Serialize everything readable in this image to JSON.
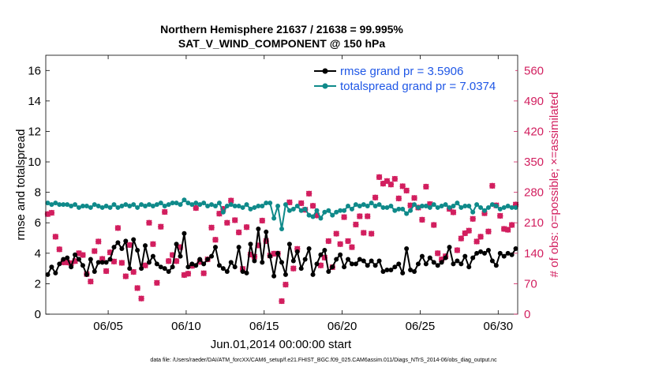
{
  "colors": {
    "rmse": "#000000",
    "spread": "#0f8a8a",
    "obs": "#d21f5f",
    "legend_text": "#1f57e6"
  },
  "footnote": "data file: /Users/raeder/DAI/ATM_forcXX/CAM6_setup/f.e21.FHIST_BGC.f09_025.CAM6assim.011/Diags_NTrS_2014-06/obs_diag_output.nc",
  "chart_data": {
    "type": "line",
    "title": "Northern Hemisphere 21637 / 21638 = 99.995%",
    "subtitle": "SAT_V_WIND_COMPONENT @ 150 hPa",
    "xlabel": "Jun.01,2014 00:00:00 start",
    "ylabel": "rmse and totalspread",
    "y2label": "# of obs: o=possible; ×=assimilated",
    "xlim": [
      1.0,
      31.25
    ],
    "ylim": [
      0,
      17
    ],
    "y2lim": [
      0,
      595
    ],
    "x_ticks": [
      5,
      10,
      15,
      20,
      25,
      30
    ],
    "x_tick_labels": [
      "06/05",
      "06/10",
      "06/15",
      "06/20",
      "06/25",
      "06/30"
    ],
    "y_ticks": [
      0,
      2,
      4,
      6,
      8,
      10,
      12,
      14,
      16
    ],
    "y2_ticks": [
      0,
      70,
      140,
      210,
      280,
      350,
      420,
      490,
      560
    ],
    "legend_position": "top-right",
    "grid": false,
    "x": [
      1.125,
      1.375,
      1.625,
      1.875,
      2.125,
      2.375,
      2.625,
      2.875,
      3.125,
      3.375,
      3.625,
      3.875,
      4.125,
      4.375,
      4.625,
      4.875,
      5.125,
      5.375,
      5.625,
      5.875,
      6.125,
      6.375,
      6.625,
      6.875,
      7.125,
      7.375,
      7.625,
      7.875,
      8.125,
      8.375,
      8.625,
      8.875,
      9.125,
      9.375,
      9.625,
      9.875,
      10.125,
      10.375,
      10.625,
      10.875,
      11.125,
      11.375,
      11.625,
      11.875,
      12.125,
      12.375,
      12.625,
      12.875,
      13.125,
      13.375,
      13.625,
      13.875,
      14.125,
      14.375,
      14.625,
      14.875,
      15.125,
      15.375,
      15.625,
      15.875,
      16.125,
      16.375,
      16.625,
      16.875,
      17.125,
      17.375,
      17.625,
      17.875,
      18.125,
      18.375,
      18.625,
      18.875,
      19.125,
      19.375,
      19.625,
      19.875,
      20.125,
      20.375,
      20.625,
      20.875,
      21.125,
      21.375,
      21.625,
      21.875,
      22.125,
      22.375,
      22.625,
      22.875,
      23.125,
      23.375,
      23.625,
      23.875,
      24.125,
      24.375,
      24.625,
      24.875,
      25.125,
      25.375,
      25.625,
      25.875,
      26.125,
      26.375,
      26.625,
      26.875,
      27.125,
      27.375,
      27.625,
      27.875,
      28.125,
      28.375,
      28.625,
      28.875,
      29.125,
      29.375,
      29.625,
      29.875,
      30.125,
      30.375,
      30.625,
      30.875,
      31.125
    ],
    "series": [
      {
        "name": "rmse grand pr = 3.5906",
        "axis": "left",
        "values": [
          2.6,
          3.1,
          2.7,
          3.3,
          3.6,
          3.7,
          3.1,
          3.9,
          3.6,
          3.2,
          2.6,
          3.6,
          2.8,
          3.4,
          3.4,
          3.4,
          3.6,
          4.4,
          4.7,
          4.3,
          4.8,
          3.0,
          4.9,
          4.2,
          3.0,
          4.5,
          3.4,
          3.8,
          3.3,
          3.1,
          3.0,
          2.8,
          3.1,
          4.6,
          3.8,
          5.3,
          3.1,
          3.3,
          3.2,
          3.6,
          3.3,
          3.6,
          3.8,
          4.4,
          3.2,
          3.0,
          2.8,
          3.4,
          3.1,
          4.4,
          2.8,
          2.7,
          4.6,
          3.5,
          5.6,
          3.4,
          5.4,
          3.8,
          2.5,
          4.0,
          3.4,
          2.6,
          4.6,
          3.5,
          4.1,
          3.0,
          3.6,
          4.3,
          2.6,
          3.3,
          3.9,
          4.2,
          2.8,
          3.1,
          3.6,
          3.9,
          3.1,
          3.6,
          3.3,
          3.3,
          3.6,
          3.5,
          3.2,
          3.5,
          3.2,
          3.5,
          2.8,
          2.9,
          2.9,
          3.1,
          3.3,
          2.7,
          4.3,
          2.9,
          2.8,
          3.3,
          3.8,
          3.3,
          3.7,
          3.4,
          3.2,
          3.4,
          3.7,
          4.4,
          3.3,
          3.5,
          3.3,
          3.8,
          3.1,
          3.7,
          4.0,
          4.1,
          4.0,
          4.2,
          3.5,
          3.2,
          4.0,
          3.8,
          4.0,
          3.9,
          4.3
        ]
      },
      {
        "name": "totalspread grand pr = 7.0374",
        "axis": "left",
        "values": [
          7.3,
          7.2,
          7.3,
          7.2,
          7.2,
          7.2,
          7.1,
          7.2,
          7.0,
          7.1,
          7.1,
          7.0,
          7.2,
          7.1,
          7.0,
          7.1,
          7.0,
          7.2,
          7.0,
          7.1,
          7.2,
          7.1,
          7.2,
          7.0,
          7.2,
          7.1,
          7.2,
          7.1,
          7.2,
          7.3,
          7.1,
          7.2,
          7.3,
          7.3,
          7.2,
          7.5,
          7.3,
          7.2,
          7.3,
          7.2,
          7.3,
          7.1,
          7.2,
          7.1,
          7.3,
          6.7,
          7.1,
          7.2,
          7.1,
          7.1,
          7.0,
          7.2,
          6.9,
          7.0,
          7.1,
          7.1,
          7.3,
          7.3,
          6.3,
          7.1,
          5.6,
          7.2,
          6.8,
          6.9,
          7.1,
          6.8,
          6.9,
          6.5,
          6.4,
          6.8,
          6.3,
          6.7,
          6.8,
          6.5,
          6.7,
          6.8,
          6.8,
          7.1,
          6.9,
          7.2,
          7.1,
          7.2,
          7.1,
          7.3,
          7.1,
          7.2,
          7.0,
          7.0,
          7.1,
          6.8,
          6.9,
          6.9,
          6.6,
          6.8,
          7.2,
          7.0,
          7.1,
          7.1,
          7.0,
          7.2,
          7.0,
          7.1,
          7.2,
          7.0,
          7.1,
          7.3,
          7.0,
          7.1,
          7.1,
          6.7,
          7.2,
          7.0,
          6.8,
          7.0,
          7.2,
          7.1,
          6.9,
          7.0,
          7.1,
          7.0,
          7.0
        ]
      },
      {
        "name": "# of obs (possible)",
        "axis": "right",
        "values": [
          230,
          233,
          178,
          149,
          119,
          119,
          117,
          122,
          140,
          136,
          92,
          75,
          145,
          167,
          127,
          99,
          142,
          121,
          198,
          118,
          87,
          159,
          97,
          60,
          36,
          112,
          210,
          161,
          72,
          201,
          235,
          122,
          136,
          122,
          154,
          90,
          93,
          111,
          244,
          120,
          94,
          126,
          199,
          171,
          231,
          242,
          210,
          261,
          216,
          188,
          104,
          200,
          137,
          132,
          158,
          215,
          168,
          135,
          139,
          139,
          30,
          68,
          257,
          105,
          150,
          255,
          240,
          277,
          249,
          227,
          112,
          130,
          168,
          108,
          185,
          161,
          223,
          168,
          154,
          206,
          225,
          187,
          225,
          185,
          268,
          315,
          300,
          306,
          298,
          311,
          266,
          294,
          284,
          250,
          267,
          245,
          217,
          293,
          253,
          205,
          140,
          126,
          133,
          242,
          234,
          147,
          174,
          186,
          192,
          219,
          167,
          178,
          232,
          190,
          295,
          250,
          226,
          196,
          194,
          205,
          252
        ]
      },
      {
        "name": "# of obs (assimilated)",
        "axis": "right",
        "values": [
          230,
          233,
          178,
          149,
          119,
          119,
          117,
          122,
          140,
          136,
          92,
          75,
          145,
          167,
          127,
          99,
          142,
          121,
          198,
          118,
          87,
          159,
          97,
          60,
          36,
          112,
          210,
          161,
          72,
          201,
          235,
          122,
          136,
          122,
          154,
          90,
          93,
          111,
          244,
          120,
          94,
          126,
          199,
          171,
          231,
          242,
          210,
          261,
          216,
          188,
          104,
          200,
          137,
          132,
          158,
          215,
          168,
          135,
          139,
          139,
          30,
          68,
          257,
          105,
          150,
          255,
          240,
          277,
          249,
          227,
          112,
          130,
          168,
          108,
          185,
          161,
          223,
          168,
          154,
          206,
          225,
          187,
          225,
          185,
          268,
          315,
          300,
          306,
          298,
          311,
          266,
          294,
          284,
          250,
          267,
          245,
          217,
          293,
          253,
          205,
          140,
          126,
          133,
          242,
          234,
          147,
          174,
          186,
          192,
          219,
          167,
          178,
          232,
          190,
          295,
          250,
          226,
          196,
          194,
          205,
          252
        ]
      }
    ]
  }
}
